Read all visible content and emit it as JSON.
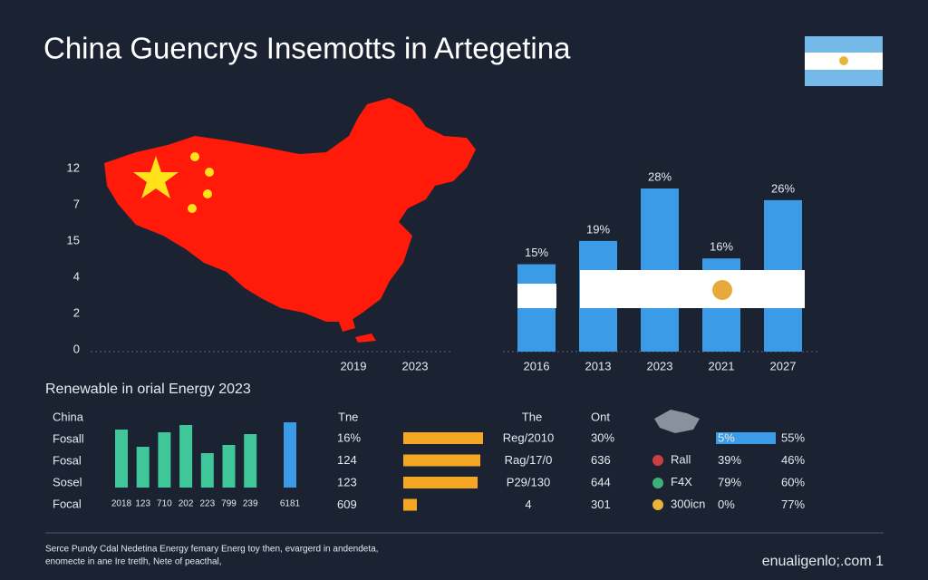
{
  "title": "China Guencrys Insemotts in Artegetina",
  "map_panel": {
    "y_labels": [
      "12",
      "7",
      "15",
      "4",
      "2",
      "0"
    ],
    "x_labels": [
      "2019",
      "2023"
    ]
  },
  "chart_data": [
    {
      "type": "bar",
      "categories": [
        "2016",
        "2013",
        "2023",
        "2021",
        "2027"
      ],
      "values": [
        15,
        19,
        28,
        16,
        26
      ],
      "value_labels": [
        "15%",
        "19%",
        "28%",
        "16%",
        "26%"
      ],
      "color": "#3b9be6"
    },
    {
      "type": "bar",
      "categories": [
        "2018",
        "123",
        "710",
        "202",
        "223",
        "799",
        "239",
        "6181"
      ],
      "values": [
        64,
        45,
        61,
        69,
        38,
        47,
        59,
        72
      ],
      "colors": [
        "#3fc79a",
        "#3fc79a",
        "#3fc79a",
        "#3fc79a",
        "#3fc79a",
        "#3fc79a",
        "#3fc79a",
        "#3b9be6"
      ]
    },
    {
      "type": "hbar",
      "values": [
        88,
        85,
        82,
        15
      ],
      "color": "#f5a623"
    },
    {
      "type": "hbar",
      "values": [
        66
      ],
      "color": "#3b9be6"
    }
  ],
  "section": {
    "heading": "Renewable in orial Energy 2023",
    "row_labels": [
      "China",
      "Fosall",
      "Fosal",
      "Sosel",
      "Focal"
    ]
  },
  "table": {
    "headers": [
      "Tne",
      "The",
      "Ont"
    ],
    "col1": [
      "16%",
      "124",
      "123",
      "609"
    ],
    "col2": [
      "Reg/2010",
      "Rag/17/0",
      "P29/130",
      "4"
    ],
    "col3": [
      "30%",
      "636",
      "644",
      "301"
    ]
  },
  "right_table": {
    "names": [
      "Rall",
      "F4X",
      "300icn"
    ],
    "col1": [
      "5%",
      "39%",
      "79%",
      "0%"
    ],
    "col2": [
      "55%",
      "46%",
      "60%",
      "77%"
    ]
  },
  "footer": {
    "source": "Serce Pundy Cdal Nedetina Energy femary Energ toy then, evargerd in andendeta,",
    "source2": "enomecte in ane Ire tretlh, Nete of peacthal,",
    "site": "enualigenlo;.com 1"
  }
}
